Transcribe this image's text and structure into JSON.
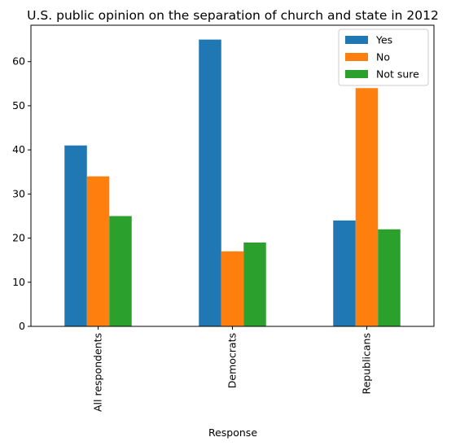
{
  "chart_data": {
    "type": "bar",
    "title": "U.S. public opinion on the separation of church and state in 2012",
    "xlabel": "Response",
    "ylabel": "",
    "categories": [
      "All respondents",
      "Democrats",
      "Republicans"
    ],
    "series": [
      {
        "name": "Yes",
        "values": [
          41,
          65,
          24
        ],
        "color": "#1f77b4"
      },
      {
        "name": "No",
        "values": [
          34,
          17,
          54
        ],
        "color": "#ff7f0e"
      },
      {
        "name": "Not sure",
        "values": [
          25,
          19,
          22
        ],
        "color": "#2ca02c"
      }
    ],
    "ylim": [
      0,
      68.25
    ],
    "yticks": [
      0,
      10,
      20,
      30,
      40,
      50,
      60
    ],
    "legend_position": "top-right",
    "grid": false
  }
}
